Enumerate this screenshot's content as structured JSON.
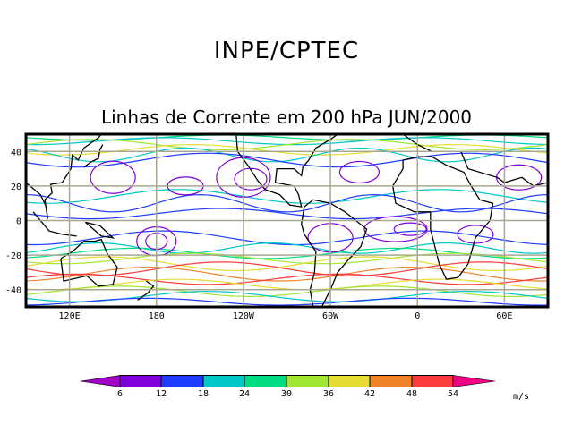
{
  "header": {
    "title": "INPE/CPTEC",
    "subtitle": "Linhas de Corrente em 200 hPa JUN/2000"
  },
  "map": {
    "lat_labels": [
      "40",
      "20",
      "0",
      "-20",
      "-40"
    ],
    "lat_values": [
      40,
      20,
      0,
      -20,
      -40
    ],
    "lon_labels": [
      "120E",
      "180",
      "120W",
      "60W",
      "0",
      "60E"
    ],
    "lon_values": [
      120,
      180,
      240,
      300,
      360,
      420
    ],
    "lon_range": [
      90,
      450
    ],
    "lat_range": [
      -50,
      50
    ]
  },
  "colorbar": {
    "ticks": [
      "6",
      "12",
      "18",
      "24",
      "30",
      "36",
      "42",
      "48",
      "54"
    ],
    "colors": [
      "#a000c8",
      "#8200dc",
      "#1e3cff",
      "#00c8c8",
      "#00dc82",
      "#a0e632",
      "#e6dc32",
      "#f08228",
      "#fa3c3c",
      "#f00082"
    ],
    "units": "m/s"
  }
}
